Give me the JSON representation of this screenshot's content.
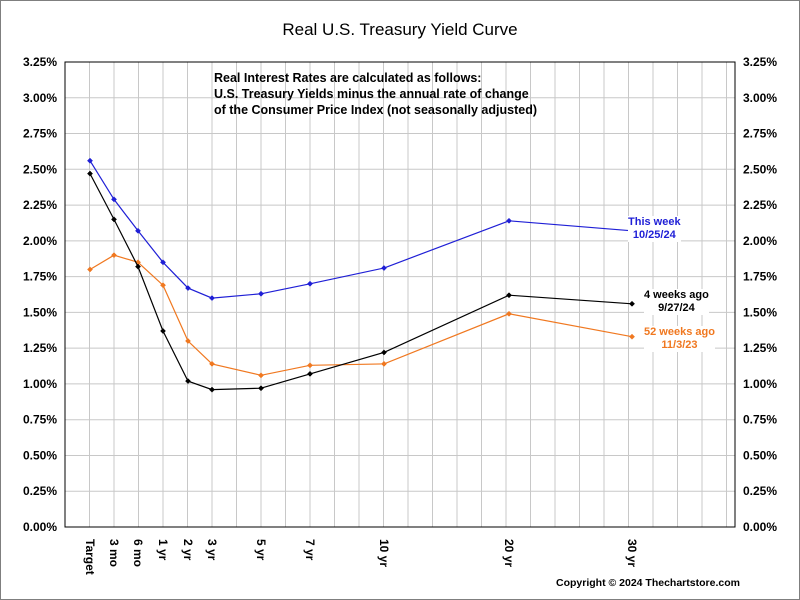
{
  "chart_data": {
    "type": "line",
    "title": "Real U.S. Treasury Yield Curve",
    "note_lines": [
      "Real Interest Rates are calculated as follows:",
      "U.S. Treasury Yields minus the annual rate of change",
      "of the Consumer Price Index (not seasonally adjusted)"
    ],
    "categories": [
      "Target",
      "3 mo",
      "6 mo",
      "1 yr",
      "2 yr",
      "3 yr",
      "5 yr",
      "7 yr",
      "10 yr",
      "20 yr",
      "30 yr"
    ],
    "y_ticks": [
      "0.00%",
      "0.25%",
      "0.50%",
      "0.75%",
      "1.00%",
      "1.25%",
      "1.50%",
      "1.75%",
      "2.00%",
      "2.25%",
      "2.50%",
      "2.75%",
      "3.00%",
      "3.25%"
    ],
    "ylim": [
      0,
      3.25
    ],
    "grid": true,
    "series": [
      {
        "name": "This week",
        "date": "10/25/24",
        "color": "#1f1fd6",
        "values": [
          2.56,
          2.29,
          2.07,
          1.85,
          1.67,
          1.6,
          1.63,
          1.7,
          1.81,
          2.14,
          2.07
        ]
      },
      {
        "name": "4 weeks ago",
        "date": "9/27/24",
        "color": "#000000",
        "values": [
          2.47,
          2.15,
          1.82,
          1.37,
          1.02,
          0.96,
          0.97,
          1.07,
          1.22,
          1.62,
          1.56
        ]
      },
      {
        "name": "52 weeks ago",
        "date": "11/3/23",
        "color": "#f07820",
        "values": [
          1.8,
          1.9,
          1.85,
          1.69,
          1.3,
          1.14,
          1.06,
          1.13,
          1.14,
          1.49,
          1.33
        ]
      }
    ]
  },
  "copyright": "Copyright © 2024 Thechartstore.com"
}
